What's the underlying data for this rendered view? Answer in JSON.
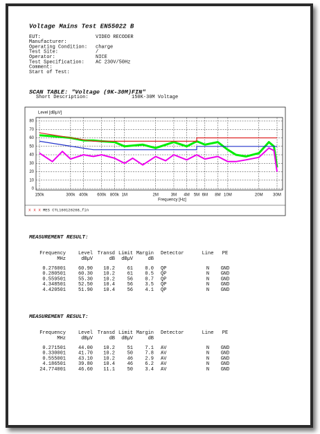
{
  "header": {
    "title": "Voltage Mains Test EN55022 B"
  },
  "info": [
    {
      "label": "EUT:",
      "value": "VIDEO RECODER"
    },
    {
      "label": "Manufacturer:"
    },
    {
      "label": "Operating Condition:",
      "value": "charge"
    },
    {
      "label": "Test Site:",
      "value": "/"
    },
    {
      "label": "Operator:",
      "value": "NICE"
    },
    {
      "label": "Test Specification:",
      "value": "AC 230V/50Hz"
    },
    {
      "label": "Comment:"
    },
    {
      "label": "Start of Test:"
    }
  ],
  "scan_table": {
    "title": "SCAN TABLE: \"Voltage (9K-30M)FIN\"",
    "description_label": "Short Description:",
    "description": "150K-30M Voltage"
  },
  "chart_data": {
    "type": "line",
    "y_label": "Level [dBµV]",
    "x_label": "Frequency [Hz]",
    "log_x": true,
    "grid": true,
    "xlim": [
      150000,
      30000000
    ],
    "ylim": [
      0,
      80
    ],
    "yticks": [
      0,
      10,
      20,
      30,
      40,
      50,
      60,
      70,
      80
    ],
    "xticks": [
      {
        "value": 150000,
        "label": "150k"
      },
      {
        "value": 300000,
        "label": "300k"
      },
      {
        "value": 400000,
        "label": "400k"
      },
      {
        "value": 600000,
        "label": "600k"
      },
      {
        "value": 800000,
        "label": "800k"
      },
      {
        "value": 1000000,
        "label": "1M"
      },
      {
        "value": 2000000,
        "label": "2M"
      },
      {
        "value": 3000000,
        "label": "3M"
      },
      {
        "value": 4000000,
        "label": "4M"
      },
      {
        "value": 5000000,
        "label": "5M"
      },
      {
        "value": 6000000,
        "label": "6M"
      },
      {
        "value": 8000000,
        "label": "8M"
      },
      {
        "value": 10000000,
        "label": "10M"
      },
      {
        "value": 20000000,
        "label": "20M"
      },
      {
        "value": 30000000,
        "label": "30M"
      }
    ],
    "series": [
      {
        "color": "#00ee00",
        "width": 3,
        "x": [
          150000,
          200000,
          300000,
          400000,
          500000,
          600000,
          800000,
          1000000,
          1500000,
          2000000,
          3000000,
          4000000,
          5000000,
          6000000,
          8000000,
          10000000,
          12000000,
          15000000,
          20000000,
          25000000,
          28000000,
          30000000
        ],
        "values": [
          63,
          62,
          60,
          57,
          57,
          56,
          55,
          50,
          52,
          48,
          55,
          50,
          56,
          52,
          55,
          46,
          40,
          38,
          42,
          55,
          50,
          25
        ]
      },
      {
        "color": "#ee00ee",
        "width": 2,
        "x": [
          150000,
          200000,
          250000,
          300000,
          400000,
          500000,
          600000,
          800000,
          1000000,
          1200000,
          1500000,
          2000000,
          2500000,
          3000000,
          4000000,
          5000000,
          6000000,
          8000000,
          10000000,
          12000000,
          15000000,
          20000000,
          25000000,
          28000000,
          30000000
        ],
        "values": [
          42,
          32,
          44,
          35,
          40,
          38,
          40,
          36,
          30,
          36,
          28,
          38,
          33,
          40,
          34,
          40,
          35,
          38,
          32,
          32,
          34,
          37,
          48,
          45,
          20
        ]
      },
      {
        "color": "#dd2222",
        "width": 1.2,
        "x": [
          150000,
          500000,
          500000,
          5000000,
          5000000,
          30000000
        ],
        "values": [
          66,
          56,
          56,
          56,
          60,
          60
        ]
      },
      {
        "color": "#2233cc",
        "width": 1.2,
        "x": [
          150000,
          500000,
          500000,
          5000000,
          5000000,
          30000000
        ],
        "values": [
          56,
          46,
          46,
          46,
          50,
          50
        ]
      }
    ],
    "legend": "MES  CTL160126268_fin"
  },
  "results": [
    {
      "title": "MEASUREMENT RESULT:",
      "columns": [
        [
          "Frequency",
          "MHz"
        ],
        [
          "Level",
          "dBµV"
        ],
        [
          "Transd",
          "dB"
        ],
        [
          "Limit",
          "dBµV"
        ],
        [
          "Margin",
          "dB"
        ],
        [
          "Detector"
        ],
        [
          "Line"
        ],
        [
          "PE"
        ]
      ],
      "rows": [
        [
          "0.276001",
          "60.90",
          "10.2",
          "61",
          "0.0",
          "QP",
          "N",
          "GND"
        ],
        [
          "0.280501",
          "60.30",
          "10.2",
          "61",
          "0.5",
          "QP",
          "N",
          "GND"
        ],
        [
          "0.559501",
          "55.30",
          "10.2",
          "56",
          "0.7",
          "QP",
          "N",
          "GND"
        ],
        [
          "4.348501",
          "52.50",
          "10.4",
          "56",
          "3.5",
          "QP",
          "N",
          "GND"
        ],
        [
          "4.420501",
          "51.90",
          "10.4",
          "56",
          "4.1",
          "QP",
          "N",
          "GND"
        ]
      ]
    },
    {
      "title": "MEASUREMENT RESULT:",
      "columns": [
        [
          "Frequency",
          "MHz"
        ],
        [
          "Level",
          "dBµV"
        ],
        [
          "Transd",
          "dB"
        ],
        [
          "Limit",
          "dBµV"
        ],
        [
          "Margin",
          "dB"
        ],
        [
          "Detector"
        ],
        [
          "Line"
        ],
        [
          "PE"
        ]
      ],
      "rows": [
        [
          "0.271501",
          "44.00",
          "10.2",
          "51",
          "7.1",
          "AV",
          "N",
          "GND"
        ],
        [
          "0.330001",
          "41.70",
          "10.2",
          "50",
          "7.8",
          "AV",
          "N",
          "GND"
        ],
        [
          "0.555001",
          "43.10",
          "10.2",
          "46",
          "2.9",
          "AV",
          "N",
          "GND"
        ],
        [
          "4.186501",
          "39.80",
          "10.4",
          "46",
          "6.2",
          "AV",
          "N",
          "GND"
        ],
        [
          "24.774001",
          "46.60",
          "11.1",
          "50",
          "3.4",
          "AV",
          "N",
          "GND"
        ]
      ]
    }
  ]
}
